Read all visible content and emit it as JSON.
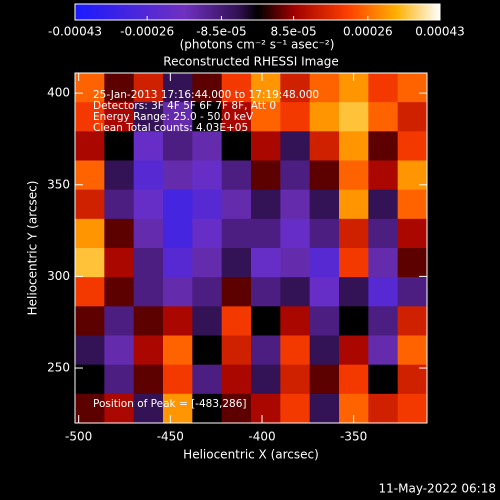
{
  "chart_data": {
    "type": "heatmap",
    "title": "Reconstructed RHESSI Image",
    "colorbar_label": "(photons cm⁻² s⁻¹ asec⁻²)",
    "clim": [
      -0.00043,
      0.00043
    ],
    "cticks": [
      -0.00043,
      -0.00026,
      {
        "value": -8.5e-05,
        "label": "-8.5e-05"
      },
      {
        "value": 8.5e-05,
        "label": "8.5e-05"
      },
      0.00026,
      0.00043
    ],
    "xlabel": "Heliocentric X (arcsec)",
    "ylabel": "Heliocentric Y (arcsec)",
    "xlim": [
      -502,
      -310
    ],
    "ylim": [
      220,
      411
    ],
    "xticks": [
      -500,
      -450,
      -400,
      -350
    ],
    "yticks": [
      250,
      300,
      350,
      400
    ],
    "annotations": [
      "25-Jan-2013 17:16:44.000 to 17:19:48.000",
      "Detectors: 3F 4F 5F 6F 7F 8F, Att 0",
      "Energy Range: 25.0 - 50.0 keV",
      "Clean     Total counts: 4.03E+05"
    ],
    "peak_label": "Position of Peak = [-483,286]",
    "footer": "11-May-2022 06:18",
    "z": [
      [
        0.00025,
        5e-05,
        0.00015,
        -5e-05,
        5e-05,
        0.0002,
        0.0003,
        0.00015,
        0.00025,
        0.0003,
        0.0002,
        0.00025
      ],
      [
        0.0002,
        0.0001,
        -5e-05,
        -0.00015,
        0,
        0.0001,
        0.00025,
        0.0002,
        0.0003,
        0.00035,
        0.00025,
        0.00015
      ],
      [
        0.0001,
        0,
        -0.0002,
        -0.0001,
        -0.00015,
        0,
        0.0001,
        -5e-05,
        0.00015,
        0.0003,
        5e-05,
        0.0002
      ],
      [
        0.00025,
        -5e-05,
        -0.00025,
        -0.00015,
        -0.0002,
        -0.0001,
        5e-05,
        -0.0001,
        5e-05,
        0.00025,
        0.0001,
        0.0003
      ],
      [
        0.00015,
        -0.0001,
        -0.0002,
        -0.0003,
        -0.00025,
        -0.00015,
        -5e-05,
        -0.00015,
        -5e-05,
        0.0003,
        -5e-05,
        0.00025
      ],
      [
        0.0003,
        5e-05,
        -0.00015,
        -0.0003,
        -0.0002,
        -0.0001,
        -0.0001,
        -0.0002,
        -0.0001,
        0.00015,
        -0.0001,
        0.0001
      ],
      [
        0.00035,
        0.0001,
        -0.0001,
        -0.00025,
        -0.00015,
        -5e-05,
        -0.0002,
        -0.00015,
        -0.00025,
        0.0002,
        -0.00015,
        5e-05
      ],
      [
        0.0002,
        5e-05,
        -0.0001,
        -0.00015,
        -0.0001,
        5e-05,
        -0.0001,
        -5e-05,
        -0.0002,
        -5e-05,
        -0.00025,
        -0.0001
      ],
      [
        5e-05,
        -0.0001,
        5e-05,
        0.0001,
        -5e-05,
        0.0002,
        0,
        0.0001,
        -0.0001,
        0,
        -0.0001,
        0.00015
      ],
      [
        -5e-05,
        -0.00015,
        0.0001,
        0.00025,
        0,
        0.00015,
        -0.0001,
        0.0002,
        -5e-05,
        0.0001,
        -0.00015,
        0.00025
      ],
      [
        0,
        -0.0001,
        5e-05,
        0.0002,
        -0.0001,
        0.0001,
        -5e-05,
        0.00015,
        5e-05,
        0.0002,
        0,
        0.00015
      ],
      [
        5e-05,
        0.0001,
        -5e-05,
        0.0003,
        0,
        5e-05,
        0.0001,
        0.0002,
        -5e-05,
        0.00025,
        0.00015,
        0.0002
      ]
    ]
  }
}
